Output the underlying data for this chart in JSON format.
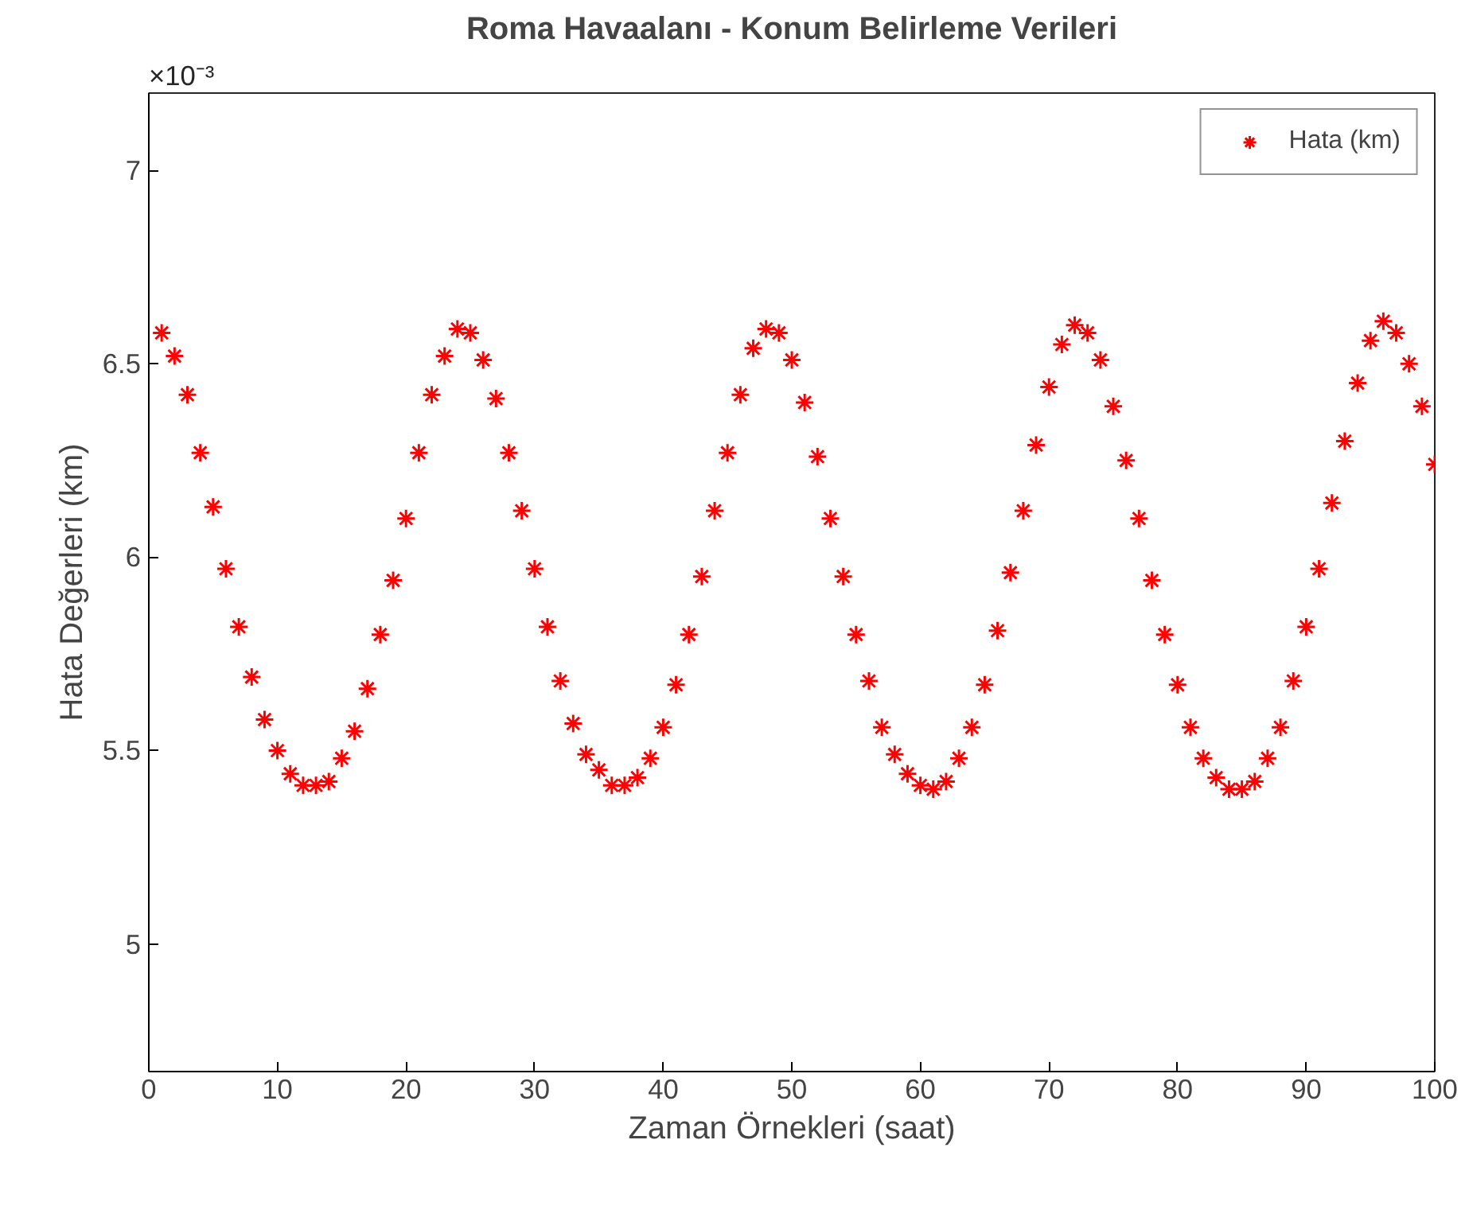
{
  "chart_data": {
    "type": "scatter",
    "title": "Roma Havaalanı - Konum Belirleme Verileri",
    "xlabel": "Zaman Örnekleri (saat)",
    "ylabel": "Hata Değerleri (km)",
    "annotations": [
      "×10⁻³"
    ],
    "x": [
      1,
      2,
      3,
      4,
      5,
      6,
      7,
      8,
      9,
      10,
      11,
      12,
      13,
      14,
      15,
      16,
      17,
      18,
      19,
      20,
      21,
      22,
      23,
      24,
      25,
      26,
      27,
      28,
      29,
      30,
      31,
      32,
      33,
      34,
      35,
      36,
      37,
      38,
      39,
      40,
      41,
      42,
      43,
      44,
      45,
      46,
      47,
      48,
      49,
      50,
      51,
      52,
      53,
      54,
      55,
      56,
      57,
      58,
      59,
      60,
      61,
      62,
      63,
      64,
      65,
      66,
      67,
      68,
      69,
      70,
      71,
      72,
      73,
      74,
      75,
      76,
      77,
      78,
      79,
      80,
      81,
      82,
      83,
      84,
      85,
      86,
      87,
      88,
      89,
      90,
      91,
      92,
      93,
      94,
      95,
      96,
      97,
      98,
      99,
      100
    ],
    "series": [
      {
        "name": "Hata (km)",
        "color": "#ff0000",
        "values": [
          6.58,
          6.52,
          6.42,
          6.27,
          6.13,
          5.97,
          5.82,
          5.69,
          5.58,
          5.5,
          5.44,
          5.41,
          5.41,
          5.42,
          5.48,
          5.55,
          5.66,
          5.8,
          5.94,
          6.1,
          6.27,
          6.42,
          6.52,
          6.59,
          6.58,
          6.51,
          6.41,
          6.27,
          6.12,
          5.97,
          5.82,
          5.68,
          5.57,
          5.49,
          5.45,
          5.41,
          5.41,
          5.43,
          5.48,
          5.56,
          5.67,
          5.8,
          5.95,
          6.12,
          6.27,
          6.42,
          6.54,
          6.59,
          6.58,
          6.51,
          6.4,
          6.26,
          6.1,
          5.95,
          5.8,
          5.68,
          5.56,
          5.49,
          5.44,
          5.41,
          5.4,
          5.42,
          5.48,
          5.56,
          5.67,
          5.81,
          5.96,
          6.12,
          6.29,
          6.44,
          6.55,
          6.6,
          6.58,
          6.51,
          6.39,
          6.25,
          6.1,
          5.94,
          5.8,
          5.67,
          5.56,
          5.48,
          5.43,
          5.4,
          5.4,
          5.42,
          5.48,
          5.56,
          5.68,
          5.82,
          5.97,
          6.14,
          6.3,
          6.45,
          6.56,
          6.61,
          6.58,
          6.5,
          6.39,
          6.24
        ]
      }
    ],
    "xlim": [
      0,
      100
    ],
    "xticks": [
      0,
      10,
      20,
      30,
      40,
      50,
      60,
      70,
      80,
      90,
      100
    ],
    "ylim": [
      4.67,
      7.2
    ],
    "yticks": [
      5,
      5.5,
      6,
      6.5,
      7
    ],
    "marker": "cross",
    "legend": "top right",
    "grid": false
  }
}
